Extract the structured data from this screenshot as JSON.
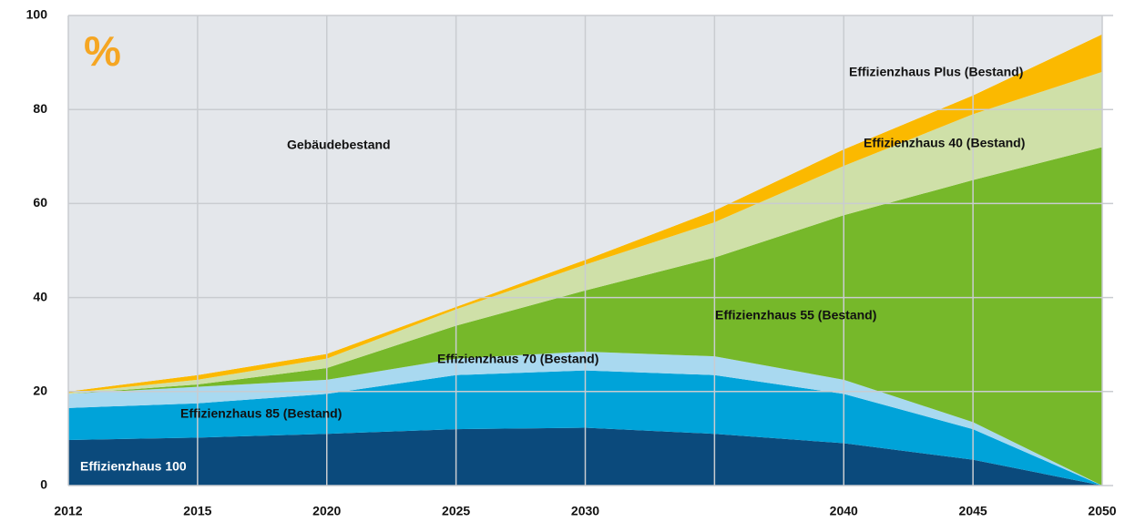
{
  "chart_data": {
    "type": "stacked_area",
    "unit_label": "%",
    "categories": [
      "2012",
      "2015",
      "2020",
      "2025",
      "2030",
      null,
      "2040",
      "2045",
      "2050"
    ],
    "series": [
      {
        "name": "Effizienzhaus 100",
        "color": "#0b4a7c",
        "values": [
          9.7,
          10.2,
          11,
          12,
          12.3,
          11,
          9,
          5.5,
          0
        ]
      },
      {
        "name": "Effizienzhaus 85 (Bestand)",
        "color": "#00a3d9",
        "values": [
          6.8,
          7.3,
          8.5,
          11.5,
          12.2,
          12.5,
          10.5,
          6.5,
          0
        ]
      },
      {
        "name": "Effizienzhaus 70 (Bestand)",
        "color": "#a9d9f0",
        "values": [
          3,
          3.5,
          3,
          3.5,
          4,
          4,
          3,
          1.5,
          0
        ]
      },
      {
        "name": "Effizienzhaus 55 (Bestand)",
        "color": "#76b82a",
        "values": [
          0,
          0.5,
          2.5,
          7,
          13,
          21,
          35,
          51.5,
          72
        ]
      },
      {
        "name": "Effizienzhaus 40 (Bestand)",
        "color": "#cfe0a8",
        "values": [
          0.2,
          1,
          2,
          3.5,
          5.5,
          7.5,
          10.5,
          14,
          16
        ]
      },
      {
        "name": "Effizienzhaus Plus (Bestand)",
        "color": "#fbb900",
        "values": [
          0.3,
          1,
          1,
          0.5,
          1,
          2.5,
          3.5,
          4,
          8
        ]
      },
      {
        "name": "Gebäudebestand",
        "color": "#e4e7eb",
        "values": [
          80,
          76.5,
          72,
          62,
          52,
          41.5,
          28.5,
          17,
          4
        ]
      }
    ],
    "ylim": [
      0,
      100
    ],
    "yticks": [
      0,
      20,
      40,
      60,
      80,
      100
    ],
    "grid": true
  }
}
